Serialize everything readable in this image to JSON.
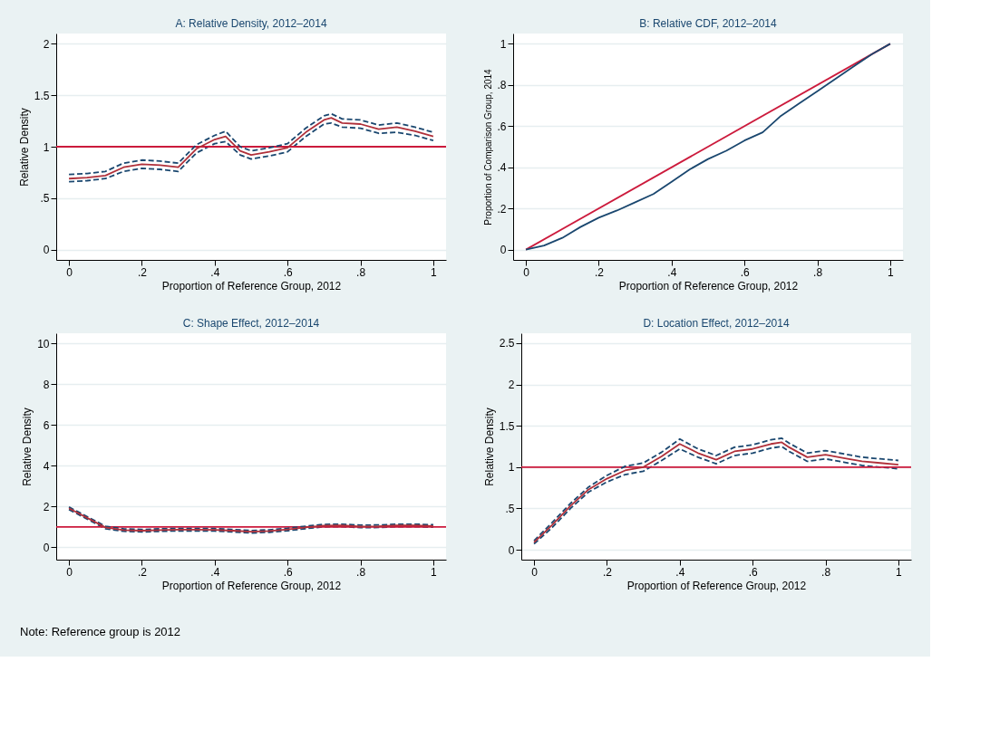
{
  "chart_data": [
    {
      "type": "line",
      "title": "A: Relative Density, 2012–2014",
      "xlabel": "Proportion of Reference Group, 2012",
      "ylabel": "Relative Density",
      "x": [
        0,
        0.05,
        0.1,
        0.15,
        0.2,
        0.25,
        0.3,
        0.35,
        0.4,
        0.43,
        0.47,
        0.5,
        0.55,
        0.6,
        0.65,
        0.7,
        0.72,
        0.75,
        0.8,
        0.85,
        0.9,
        0.95,
        1.0
      ],
      "series": [
        {
          "color": "#1a476f",
          "line_style": "dashed",
          "values": [
            0.66,
            0.67,
            0.69,
            0.76,
            0.79,
            0.78,
            0.76,
            0.94,
            1.03,
            1.05,
            0.92,
            0.88,
            0.91,
            0.95,
            1.1,
            1.22,
            1.23,
            1.19,
            1.18,
            1.13,
            1.14,
            1.11,
            1.06
          ]
        },
        {
          "color": "#1a476f",
          "line_style": "dashed",
          "values": [
            0.73,
            0.74,
            0.76,
            0.84,
            0.87,
            0.86,
            0.84,
            1.02,
            1.11,
            1.15,
            1.0,
            0.96,
            0.99,
            1.03,
            1.18,
            1.3,
            1.32,
            1.27,
            1.26,
            1.21,
            1.23,
            1.19,
            1.14
          ]
        },
        {
          "color": "#b0303a",
          "line_style": "solid",
          "values": [
            0.69,
            0.7,
            0.72,
            0.8,
            0.83,
            0.82,
            0.8,
            0.98,
            1.07,
            1.1,
            0.96,
            0.92,
            0.95,
            0.99,
            1.14,
            1.26,
            1.28,
            1.23,
            1.22,
            1.17,
            1.19,
            1.15,
            1.1
          ]
        }
      ],
      "ref_lines": [
        {
          "axis": "y",
          "value": 1,
          "color": "#cc1a3c"
        }
      ],
      "xlim": [
        -0.035,
        1.035
      ],
      "ylim": [
        -0.1,
        2.1
      ],
      "xticks": [
        0,
        {
          "value": 0.2,
          "label": ".2"
        },
        {
          "value": 0.4,
          "label": ".4"
        },
        {
          "value": 0.6,
          "label": ".6"
        },
        {
          "value": 0.8,
          "label": ".8"
        },
        1
      ],
      "yticks": [
        0,
        {
          "value": 0.5,
          "label": ".5"
        },
        1,
        1.5,
        2
      ],
      "grid": "y"
    },
    {
      "type": "line",
      "title": "B: Relative CDF, 2012–2014",
      "xlabel": "Proportion of Reference Group, 2012",
      "ylabel": "Proportion of Comparison Group, 2014",
      "x": [
        0,
        0.05,
        0.1,
        0.15,
        0.2,
        0.25,
        0.3,
        0.35,
        0.4,
        0.45,
        0.5,
        0.55,
        0.6,
        0.65,
        0.7,
        0.75,
        0.8,
        0.85,
        0.9,
        0.95,
        1
      ],
      "series": [
        {
          "color": "#cc1a3c",
          "line_style": "solid",
          "x": [
            0,
            1
          ],
          "values": [
            0,
            1
          ]
        },
        {
          "color": "#1a476f",
          "line_style": "solid",
          "values": [
            0,
            0.02,
            0.057,
            0.11,
            0.155,
            0.19,
            0.23,
            0.27,
            0.33,
            0.39,
            0.44,
            0.48,
            0.53,
            0.57,
            0.65,
            0.71,
            0.77,
            0.83,
            0.89,
            0.95,
            1
          ]
        }
      ],
      "xlim": [
        -0.035,
        1.035
      ],
      "ylim": [
        -0.05,
        1.05
      ],
      "xticks": [
        0,
        {
          "value": 0.2,
          "label": ".2"
        },
        {
          "value": 0.4,
          "label": ".4"
        },
        {
          "value": 0.6,
          "label": ".6"
        },
        {
          "value": 0.8,
          "label": ".8"
        },
        1
      ],
      "yticks": [
        0,
        {
          "value": 0.2,
          "label": ".2"
        },
        {
          "value": 0.4,
          "label": ".4"
        },
        {
          "value": 0.6,
          "label": ".6"
        },
        {
          "value": 0.8,
          "label": ".8"
        },
        1
      ],
      "grid": "y"
    },
    {
      "type": "line",
      "title": "C: Shape Effect, 2012–2014",
      "xlabel": "Proportion of Reference Group, 2012",
      "ylabel": "Relative Density",
      "x": [
        0,
        0.05,
        0.1,
        0.15,
        0.2,
        0.25,
        0.3,
        0.35,
        0.4,
        0.45,
        0.5,
        0.55,
        0.6,
        0.65,
        0.7,
        0.75,
        0.8,
        0.85,
        0.9,
        0.95,
        1
      ],
      "series": [
        {
          "color": "#1a476f",
          "line_style": "dashed",
          "values": [
            1.86,
            1.39,
            0.92,
            0.79,
            0.76,
            0.79,
            0.81,
            0.81,
            0.8,
            0.76,
            0.71,
            0.74,
            0.82,
            0.92,
            1.01,
            1.02,
            0.97,
            0.98,
            1.02,
            1.02,
            0.99
          ]
        },
        {
          "color": "#1a476f",
          "line_style": "dashed",
          "values": [
            1.98,
            1.51,
            1.04,
            0.91,
            0.88,
            0.91,
            0.93,
            0.93,
            0.92,
            0.88,
            0.83,
            0.86,
            0.94,
            1.04,
            1.13,
            1.14,
            1.09,
            1.1,
            1.14,
            1.14,
            1.11
          ]
        },
        {
          "color": "#b0303a",
          "line_style": "solid",
          "values": [
            1.92,
            1.45,
            0.98,
            0.85,
            0.82,
            0.85,
            0.87,
            0.87,
            0.86,
            0.82,
            0.77,
            0.8,
            0.88,
            0.98,
            1.07,
            1.08,
            1.03,
            1.04,
            1.08,
            1.08,
            1.05
          ]
        }
      ],
      "ref_lines": [
        {
          "axis": "y",
          "value": 1,
          "color": "#cc1a3c"
        }
      ],
      "xlim": [
        -0.035,
        1.035
      ],
      "ylim": [
        -0.6,
        10.5
      ],
      "xticks": [
        0,
        {
          "value": 0.2,
          "label": ".2"
        },
        {
          "value": 0.4,
          "label": ".4"
        },
        {
          "value": 0.6,
          "label": ".6"
        },
        {
          "value": 0.8,
          "label": ".8"
        },
        1
      ],
      "yticks": [
        0,
        2,
        4,
        6,
        8,
        10
      ],
      "grid": "y",
      "annotations": [
        "Note: Reference group is 2012"
      ]
    },
    {
      "type": "line",
      "title": "D: Location Effect, 2012–2014",
      "xlabel": "Proportion of Reference Group, 2012",
      "ylabel": "Relative Density",
      "x": [
        0,
        0.05,
        0.1,
        0.15,
        0.2,
        0.25,
        0.3,
        0.35,
        0.4,
        0.45,
        0.5,
        0.55,
        0.6,
        0.65,
        0.68,
        0.7,
        0.75,
        0.8,
        0.85,
        0.9,
        0.95,
        1.0
      ],
      "series": [
        {
          "color": "#1a476f",
          "line_style": "dashed",
          "values": [
            0.07,
            0.27,
            0.5,
            0.7,
            0.82,
            0.91,
            0.95,
            1.08,
            1.22,
            1.12,
            1.04,
            1.14,
            1.17,
            1.23,
            1.25,
            1.19,
            1.07,
            1.1,
            1.06,
            1.02,
            1.0,
            0.98
          ]
        },
        {
          "color": "#1a476f",
          "line_style": "dashed",
          "values": [
            0.11,
            0.33,
            0.56,
            0.76,
            0.9,
            1.01,
            1.05,
            1.18,
            1.34,
            1.22,
            1.14,
            1.24,
            1.27,
            1.33,
            1.35,
            1.29,
            1.17,
            1.2,
            1.16,
            1.12,
            1.1,
            1.08
          ]
        },
        {
          "color": "#b0303a",
          "line_style": "solid",
          "values": [
            0.09,
            0.3,
            0.53,
            0.73,
            0.86,
            0.96,
            1.0,
            1.13,
            1.28,
            1.17,
            1.09,
            1.19,
            1.22,
            1.28,
            1.3,
            1.24,
            1.12,
            1.15,
            1.11,
            1.07,
            1.05,
            1.03
          ]
        }
      ],
      "ref_lines": [
        {
          "axis": "y",
          "value": 1,
          "color": "#cc1a3c"
        }
      ],
      "xlim": [
        -0.035,
        1.035
      ],
      "ylim": [
        -0.12,
        2.62
      ],
      "xticks": [
        0,
        {
          "value": 0.2,
          "label": ".2"
        },
        {
          "value": 0.4,
          "label": ".4"
        },
        {
          "value": 0.6,
          "label": ".6"
        },
        {
          "value": 0.8,
          "label": ".8"
        },
        1
      ],
      "yticks": [
        0,
        {
          "value": 0.5,
          "label": ".5"
        },
        1,
        1.5,
        2,
        2.5
      ],
      "grid": "y"
    }
  ]
}
